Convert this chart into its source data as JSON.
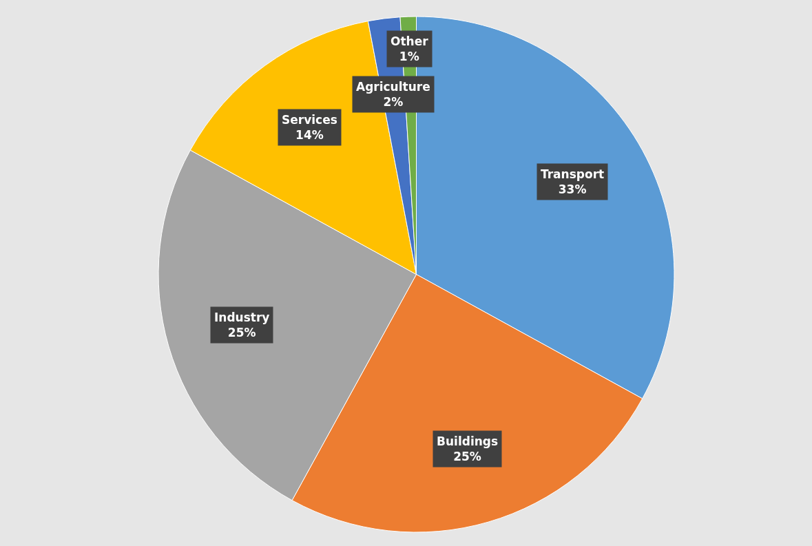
{
  "chart_data": {
    "type": "pie",
    "categories": [
      "Transport",
      "Buildings",
      "Industry",
      "Services",
      "Agriculture",
      "Other"
    ],
    "values": [
      33,
      25,
      25,
      14,
      2,
      1
    ],
    "value_labels": [
      "33%",
      "25%",
      "25%",
      "14%",
      "2%",
      "1%"
    ],
    "colors": [
      "#5b9bd5",
      "#ed7d31",
      "#a5a5a5",
      "#ffc000",
      "#4472c4",
      "#70ad47"
    ],
    "legend": false
  }
}
